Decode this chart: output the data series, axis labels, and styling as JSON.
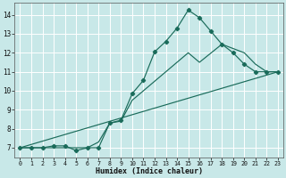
{
  "xlabel": "Humidex (Indice chaleur)",
  "background_color": "#c8e8e8",
  "grid_color": "#ffffff",
  "line_color": "#1a6b5a",
  "xlim": [
    -0.5,
    23.5
  ],
  "ylim": [
    6.5,
    14.65
  ],
  "xticks": [
    0,
    1,
    2,
    3,
    4,
    5,
    6,
    7,
    8,
    9,
    10,
    11,
    12,
    13,
    14,
    15,
    16,
    17,
    18,
    19,
    20,
    21,
    22,
    23
  ],
  "yticks": [
    7,
    8,
    9,
    10,
    11,
    12,
    13,
    14
  ],
  "line1_x": [
    0,
    1,
    2,
    3,
    4,
    5,
    6,
    7,
    8,
    9,
    10,
    11,
    12,
    13,
    14,
    15,
    16,
    17,
    18,
    19,
    20,
    21,
    22,
    23
  ],
  "line1_y": [
    7.0,
    7.0,
    7.0,
    7.1,
    7.1,
    6.85,
    7.0,
    7.0,
    8.3,
    8.45,
    9.85,
    10.55,
    12.05,
    12.6,
    13.3,
    14.25,
    13.85,
    13.15,
    12.45,
    12.0,
    11.4,
    11.0,
    11.0,
    11.0
  ],
  "line2_x": [
    0,
    23
  ],
  "line2_y": [
    7.0,
    11.0
  ],
  "line3_x": [
    0,
    5,
    6,
    7,
    8,
    9,
    10,
    15,
    16,
    18,
    20,
    21,
    22,
    23
  ],
  "line3_y": [
    7.0,
    7.0,
    7.0,
    7.3,
    8.3,
    8.4,
    9.5,
    12.0,
    11.5,
    12.45,
    12.0,
    11.4,
    11.0,
    11.0
  ]
}
